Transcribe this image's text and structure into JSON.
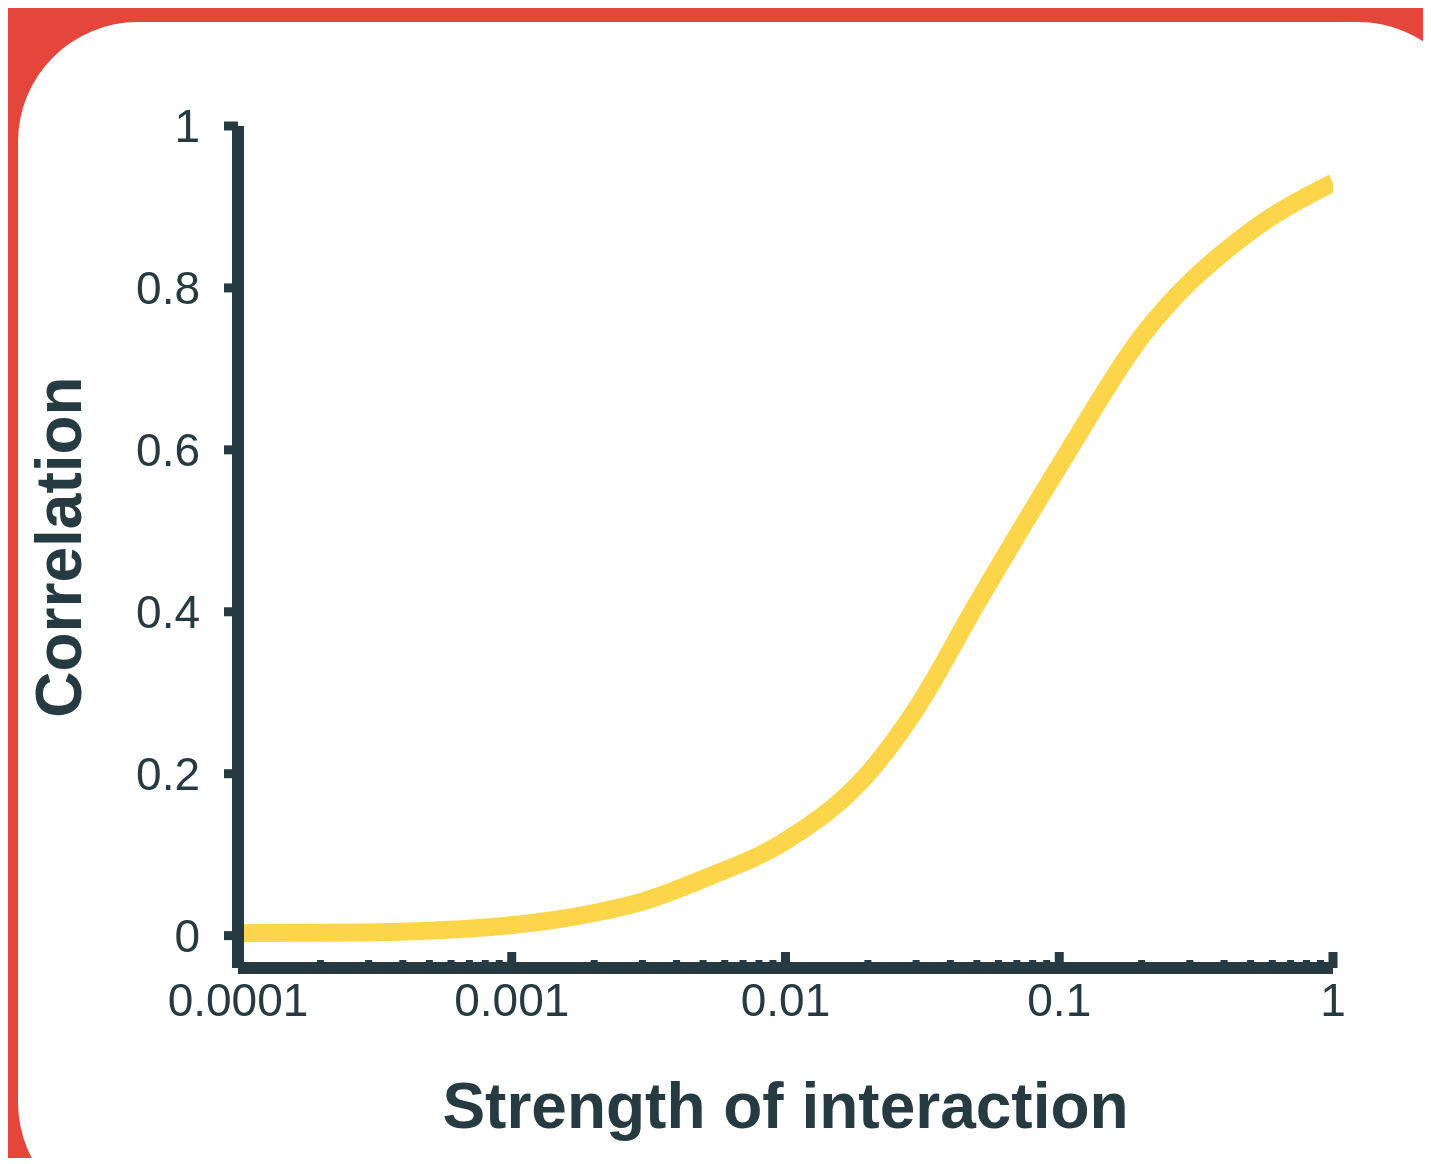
{
  "chart_data": {
    "type": "line",
    "xlabel": "Strength of interaction",
    "ylabel": "Correlation",
    "log": "x",
    "xlim": [
      0.0001,
      1
    ],
    "xticks": [
      0.0001,
      {
        "value": 0.0002,
        "label": null
      },
      {
        "value": 0.0003,
        "label": null
      },
      {
        "value": 0.0004,
        "label": null
      },
      {
        "value": 0.0005,
        "label": null
      },
      {
        "value": 0.0006,
        "label": null
      },
      {
        "value": 0.0007,
        "label": null
      },
      {
        "value": 0.0008,
        "label": null
      },
      {
        "value": 0.0009,
        "label": null
      },
      0.001,
      {
        "value": 0.002,
        "label": null
      },
      {
        "value": 0.003,
        "label": null
      },
      {
        "value": 0.004,
        "label": null
      },
      {
        "value": 0.005,
        "label": null
      },
      {
        "value": 0.006,
        "label": null
      },
      {
        "value": 0.007,
        "label": null
      },
      {
        "value": 0.008,
        "label": null
      },
      {
        "value": 0.009,
        "label": null
      },
      0.01,
      {
        "value": 0.02,
        "label": null
      },
      {
        "value": 0.03,
        "label": null
      },
      {
        "value": 0.04,
        "label": null
      },
      {
        "value": 0.05,
        "label": null
      },
      {
        "value": 0.06,
        "label": null
      },
      {
        "value": 0.07,
        "label": null
      },
      {
        "value": 0.08,
        "label": null
      },
      {
        "value": 0.09,
        "label": null
      },
      0.1,
      {
        "value": 0.2,
        "label": null
      },
      {
        "value": 0.3,
        "label": null
      },
      {
        "value": 0.4,
        "label": null
      },
      {
        "value": 0.5,
        "label": null
      },
      {
        "value": 0.6,
        "label": null
      },
      {
        "value": 0.7,
        "label": null
      },
      {
        "value": 0.8,
        "label": null
      },
      {
        "value": 0.9,
        "label": null
      },
      1
    ],
    "ylim": [
      -0.04,
      1
    ],
    "yticks": [
      0,
      0.2,
      0.4,
      0.6,
      0.8,
      1
    ],
    "x": [
      0.0001,
      0.0003,
      0.001,
      0.002,
      0.003,
      0.005,
      0.01,
      0.02,
      0.03,
      0.05,
      0.1,
      0.2,
      0.5,
      1
    ],
    "series": [
      {
        "color": "#fdd54a",
        "values": [
          0.003,
          0.004,
          0.013,
          0.028,
          0.042,
          0.07,
          0.117,
          0.2,
          0.28,
          0.41,
          0.58,
          0.74,
          0.87,
          0.93
        ]
      }
    ],
    "marker": "none",
    "line_style": "solid"
  }
}
